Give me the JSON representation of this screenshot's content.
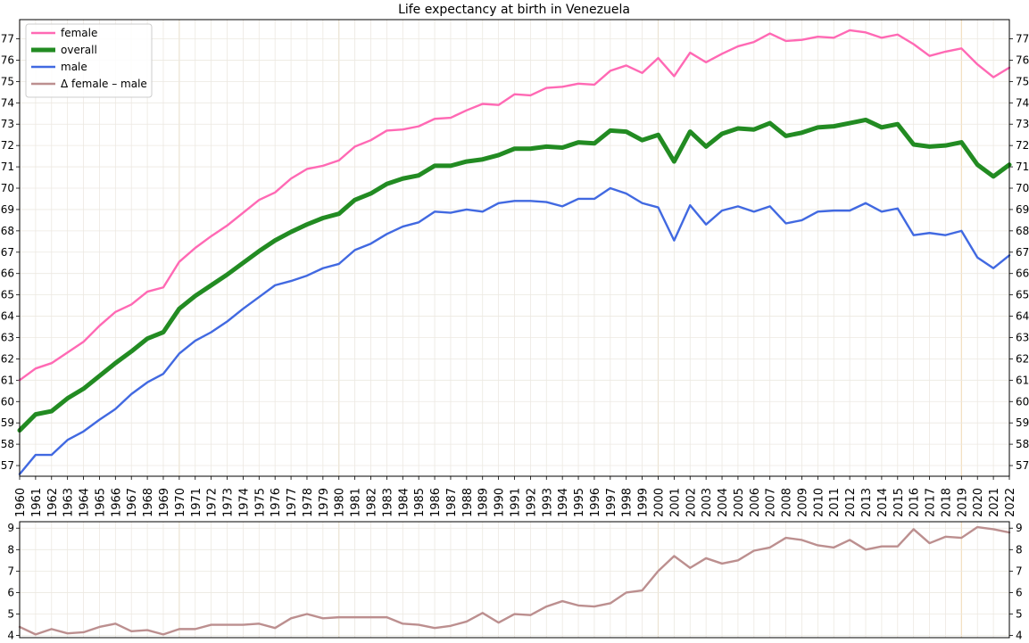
{
  "chart_data": {
    "type": "line",
    "title": "Life expectancy at birth in Venezuela",
    "x": [
      1960,
      1961,
      1962,
      1963,
      1964,
      1965,
      1966,
      1967,
      1968,
      1969,
      1970,
      1971,
      1972,
      1973,
      1974,
      1975,
      1976,
      1977,
      1978,
      1979,
      1980,
      1981,
      1982,
      1983,
      1984,
      1985,
      1986,
      1987,
      1988,
      1989,
      1990,
      1991,
      1992,
      1993,
      1994,
      1995,
      1996,
      1997,
      1998,
      1999,
      2000,
      2001,
      2002,
      2003,
      2004,
      2005,
      2006,
      2007,
      2008,
      2009,
      2010,
      2011,
      2012,
      2013,
      2014,
      2015,
      2016,
      2017,
      2018,
      2019,
      2020,
      2021,
      2022
    ],
    "series": [
      {
        "name": "female",
        "color": "#ff69b4",
        "values": [
          61.0,
          61.55,
          61.8,
          62.3,
          62.8,
          63.55,
          64.2,
          64.55,
          65.15,
          65.35,
          66.55,
          67.2,
          67.75,
          68.25,
          68.85,
          69.45,
          69.8,
          70.45,
          70.9,
          71.05,
          71.3,
          71.95,
          72.25,
          72.7,
          72.75,
          72.9,
          73.25,
          73.3,
          73.65,
          73.95,
          73.9,
          74.4,
          74.35,
          74.7,
          74.75,
          74.9,
          74.85,
          75.5,
          75.75,
          75.4,
          76.1,
          75.25,
          76.35,
          75.9,
          76.3,
          76.65,
          76.85,
          77.25,
          76.9,
          76.95,
          77.1,
          77.05,
          77.4,
          77.3,
          77.05,
          77.2,
          76.75,
          76.2,
          76.4,
          76.55,
          75.8,
          75.2,
          75.65
        ]
      },
      {
        "name": "overall",
        "color": "#228b22",
        "values": [
          58.65,
          59.4,
          59.55,
          60.15,
          60.6,
          61.2,
          61.8,
          62.35,
          62.95,
          63.25,
          64.35,
          64.95,
          65.45,
          65.95,
          66.5,
          67.05,
          67.55,
          67.95,
          68.3,
          68.6,
          68.8,
          69.45,
          69.75,
          70.2,
          70.45,
          70.6,
          71.05,
          71.05,
          71.25,
          71.35,
          71.55,
          71.85,
          71.85,
          71.95,
          71.9,
          72.15,
          72.1,
          72.7,
          72.65,
          72.25,
          72.5,
          71.25,
          72.65,
          71.95,
          72.55,
          72.8,
          72.75,
          73.05,
          72.45,
          72.6,
          72.85,
          72.9,
          73.05,
          73.2,
          72.85,
          73.0,
          72.05,
          71.95,
          72.0,
          72.15,
          71.1,
          70.55,
          71.1
        ]
      },
      {
        "name": "male",
        "color": "#4169e1",
        "values": [
          56.6,
          57.5,
          57.5,
          58.2,
          58.6,
          59.15,
          59.65,
          60.35,
          60.9,
          61.3,
          62.25,
          62.85,
          63.25,
          63.75,
          64.35,
          64.9,
          65.45,
          65.65,
          65.9,
          66.25,
          66.45,
          67.1,
          67.4,
          67.85,
          68.2,
          68.4,
          68.9,
          68.85,
          69.0,
          68.9,
          69.3,
          69.4,
          69.4,
          69.35,
          69.15,
          69.5,
          69.5,
          70.0,
          69.75,
          69.3,
          69.1,
          67.55,
          69.2,
          68.3,
          68.95,
          69.15,
          68.9,
          69.15,
          68.35,
          68.5,
          68.9,
          68.95,
          68.95,
          69.3,
          68.9,
          69.05,
          67.8,
          67.9,
          67.8,
          68.0,
          66.75,
          66.25,
          66.85
        ]
      },
      {
        "name": "Δ female – male",
        "color": "#bc8f8f",
        "values": [
          4.4,
          4.05,
          4.3,
          4.1,
          4.15,
          4.4,
          4.55,
          4.2,
          4.25,
          4.05,
          4.3,
          4.3,
          4.5,
          4.5,
          4.5,
          4.55,
          4.35,
          4.8,
          5.0,
          4.8,
          4.85,
          4.85,
          4.85,
          4.85,
          4.55,
          4.5,
          4.35,
          4.45,
          4.65,
          5.05,
          4.6,
          5.0,
          4.95,
          5.35,
          5.6,
          5.4,
          5.35,
          5.5,
          6.0,
          6.1,
          7.0,
          7.7,
          7.15,
          7.6,
          7.35,
          7.5,
          7.95,
          8.1,
          8.55,
          8.45,
          8.2,
          8.1,
          8.45,
          8.0,
          8.15,
          8.15,
          8.95,
          8.3,
          8.6,
          8.55,
          9.05,
          8.95,
          8.8
        ]
      }
    ],
    "top_panel": {
      "series": [
        "female",
        "overall",
        "male"
      ],
      "ylim": [
        56.5,
        77.9
      ],
      "yticks": [
        57,
        58,
        59,
        60,
        61,
        62,
        63,
        64,
        65,
        66,
        67,
        68,
        69,
        70,
        71,
        72,
        73,
        74,
        75,
        76,
        77
      ]
    },
    "bottom_panel": {
      "series": [
        "Δ female – male"
      ],
      "ylim": [
        3.9,
        9.3
      ],
      "yticks": [
        4,
        5,
        6,
        7,
        8,
        9
      ]
    },
    "xlim": [
      1960,
      2022
    ],
    "highlight_years": [
      1960,
      1970,
      1980,
      2000,
      2019
    ],
    "grid": true,
    "legend": {
      "placement": "top-left",
      "entries": [
        "female",
        "overall",
        "male",
        "Δ female – male"
      ]
    }
  }
}
